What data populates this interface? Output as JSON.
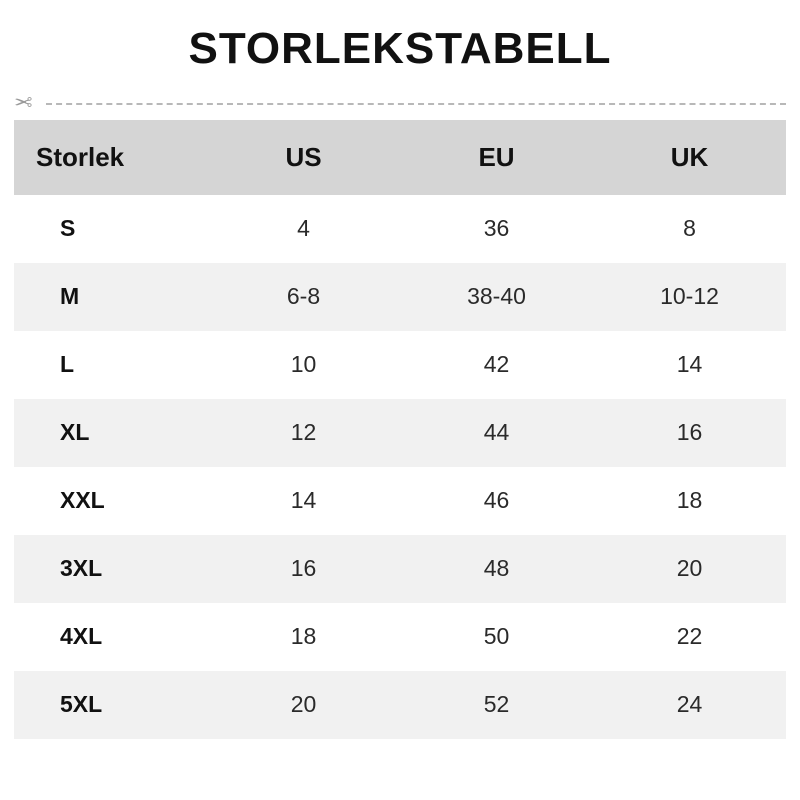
{
  "title": "STORLEKSTABELL",
  "table": {
    "type": "table",
    "background_color": "#ffffff",
    "header_bg": "#d5d5d5",
    "row_alt_bg": "#f1f1f1",
    "text_color": "#1a1a1a",
    "header_fontsize": 26,
    "cell_fontsize": 23,
    "columns": [
      "Storlek",
      "US",
      "EU",
      "UK"
    ],
    "rows": [
      [
        "S",
        "4",
        "36",
        "8"
      ],
      [
        "M",
        "6-8",
        "38-40",
        "10-12"
      ],
      [
        "L",
        "10",
        "42",
        "14"
      ],
      [
        "XL",
        "12",
        "44",
        "16"
      ],
      [
        "XXL",
        "14",
        "46",
        "18"
      ],
      [
        "3XL",
        "16",
        "48",
        "20"
      ],
      [
        "4XL",
        "18",
        "50",
        "22"
      ],
      [
        "5XL",
        "20",
        "52",
        "24"
      ]
    ]
  },
  "divider": {
    "icon": "scissors",
    "line_color": "#b8b8b8",
    "icon_color": "#9a9a9a"
  }
}
